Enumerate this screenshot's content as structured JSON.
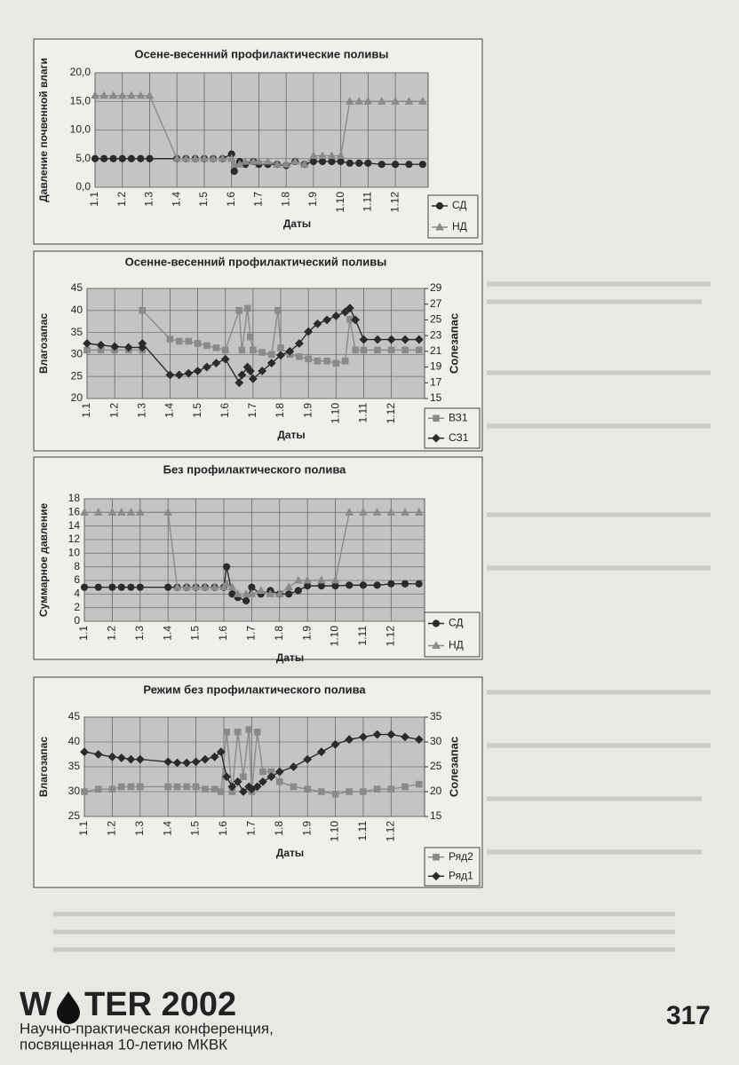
{
  "chart_data": [
    {
      "type": "line",
      "title": "Осене-весенний профилактические поливы",
      "ylabel": "Давление почвенной влаги",
      "xlabel": "Даты",
      "xlim": [
        0,
        12.2
      ],
      "xticks": [
        {
          "value": 0,
          "label": "1.1"
        },
        {
          "value": 1,
          "label": "1.2"
        },
        {
          "value": 2,
          "label": "1.3"
        },
        {
          "value": 3,
          "label": "1.4"
        },
        {
          "value": 4,
          "label": "1.5"
        },
        {
          "value": 5,
          "label": "1.6"
        },
        {
          "value": 6,
          "label": "1.7"
        },
        {
          "value": 7,
          "label": "1.8"
        },
        {
          "value": 8,
          "label": "1.9"
        },
        {
          "value": 9,
          "label": "1.10"
        },
        {
          "value": 10,
          "label": "1.11"
        },
        {
          "value": 11,
          "label": "1.12"
        }
      ],
      "ylim": [
        0,
        20
      ],
      "yticks": [
        {
          "value": 0,
          "label": "0,0"
        },
        {
          "value": 5,
          "label": "5,0"
        },
        {
          "value": 10,
          "label": "10,0"
        },
        {
          "value": 15,
          "label": "15,0"
        },
        {
          "value": 20,
          "label": "20,0"
        }
      ],
      "grid": true,
      "legend": "bottom-right",
      "series": [
        {
          "name": "СД",
          "color": "#2b2b2b",
          "marker": "circle",
          "x": [
            0,
            0.33,
            0.67,
            1,
            1.33,
            1.67,
            2,
            3,
            3.33,
            3.67,
            4,
            4.33,
            4.67,
            5,
            5.1,
            5.3,
            5.5,
            5.8,
            6,
            6.33,
            6.67,
            7,
            7.33,
            7.67,
            8,
            8.33,
            8.67,
            9,
            9.33,
            9.67,
            10,
            10.5,
            11,
            11.5,
            12
          ],
          "values": [
            5,
            5,
            5,
            5,
            5,
            5,
            5,
            5,
            5,
            5,
            5,
            5,
            5,
            5.8,
            2.8,
            4.5,
            4,
            4.5,
            4,
            4,
            4,
            3.8,
            4.5,
            4,
            4.5,
            4.5,
            4.5,
            4.5,
            4.2,
            4.2,
            4.2,
            4,
            4,
            4,
            4
          ]
        },
        {
          "name": "НД",
          "color": "#8a8a8a",
          "marker": "triangle",
          "x": [
            0,
            0.33,
            0.67,
            1,
            1.33,
            1.67,
            2,
            3,
            3.33,
            3.67,
            4,
            4.33,
            4.67,
            5,
            5.1,
            5.3,
            5.5,
            5.8,
            6,
            6.33,
            6.67,
            7,
            7.33,
            7.67,
            8,
            8.33,
            8.67,
            9,
            9.33,
            9.67,
            10,
            10.5,
            11,
            11.5,
            12
          ],
          "values": [
            16,
            16,
            16,
            16,
            16,
            16,
            16,
            5,
            5,
            5,
            5,
            5,
            5,
            5,
            4,
            4,
            4.5,
            4.5,
            4.5,
            4.5,
            4,
            4,
            4.5,
            4,
            5.5,
            5.5,
            5.5,
            5.5,
            15,
            15,
            15,
            15,
            15,
            15,
            15
          ]
        }
      ]
    },
    {
      "type": "line",
      "title": "Осенне-весенний профилактический поливы",
      "ylabel": "Влагозапас",
      "y2label": "Солезапас",
      "xlabel": "Даты",
      "xlim": [
        0,
        12.2
      ],
      "xticks": [
        {
          "value": 0,
          "label": "1.1"
        },
        {
          "value": 1,
          "label": "1.2"
        },
        {
          "value": 2,
          "label": "1.3"
        },
        {
          "value": 3,
          "label": "1.4"
        },
        {
          "value": 4,
          "label": "1.5"
        },
        {
          "value": 5,
          "label": "1.6"
        },
        {
          "value": 6,
          "label": "1.7"
        },
        {
          "value": 7,
          "label": "1.8"
        },
        {
          "value": 8,
          "label": "1.9"
        },
        {
          "value": 9,
          "label": "1.10"
        },
        {
          "value": 10,
          "label": "1.11"
        },
        {
          "value": 11,
          "label": "1.12"
        }
      ],
      "ylim": [
        20,
        45
      ],
      "yticks": [
        20,
        25,
        30,
        35,
        40,
        45
      ],
      "y2lim": [
        15,
        29
      ],
      "y2ticks": [
        15,
        17,
        19,
        21,
        23,
        25,
        27,
        29
      ],
      "grid": true,
      "legend": "bottom-right",
      "series": [
        {
          "name": "ВЗ1",
          "color": "#8a8a8a",
          "marker": "square",
          "x": [
            0,
            0.5,
            1,
            1.5,
            2,
            2,
            3,
            3.33,
            3.67,
            4,
            4.33,
            4.67,
            5,
            5.5,
            5.6,
            5.8,
            5.9,
            6,
            6.33,
            6.67,
            6.9,
            7,
            7.33,
            7.67,
            8,
            8.33,
            8.67,
            9,
            9.33,
            9.5,
            9.7,
            10,
            10.5,
            11,
            11.5,
            12
          ],
          "values": [
            31,
            31,
            31,
            31,
            31,
            40,
            33.5,
            33,
            33,
            32.5,
            32,
            31.5,
            31,
            40,
            31,
            40.5,
            34,
            31,
            30.5,
            30,
            40,
            31.5,
            30,
            29.5,
            29,
            28.5,
            28.5,
            28,
            28.5,
            38,
            31,
            31,
            31,
            31,
            31,
            31
          ]
        },
        {
          "name": "СЗ1",
          "color": "#2b2b2b",
          "marker": "diamond",
          "axis": "y2",
          "x": [
            0,
            0.5,
            1,
            1.5,
            2,
            2,
            3,
            3.33,
            3.67,
            4,
            4.33,
            4.67,
            5,
            5.5,
            5.6,
            5.8,
            5.9,
            6,
            6.33,
            6.67,
            7,
            7.33,
            7.67,
            8,
            8.33,
            8.67,
            9,
            9.33,
            9.5,
            9.7,
            10,
            10.5,
            11,
            11.5,
            12
          ],
          "values": [
            22,
            21.8,
            21.6,
            21.5,
            21.5,
            22,
            18,
            18,
            18.2,
            18.5,
            19,
            19.5,
            20,
            17,
            18,
            19,
            18.5,
            17.5,
            18.5,
            19.5,
            20.5,
            21,
            22,
            23.5,
            24.5,
            25,
            25.5,
            26,
            26.5,
            25,
            22.5,
            22.5,
            22.5,
            22.5,
            22.5
          ]
        }
      ]
    },
    {
      "type": "line",
      "title": "Без профилактического полива",
      "ylabel": "Суммарное давление",
      "xlabel": "Даты",
      "xlim": [
        0,
        12.2
      ],
      "xticks": [
        {
          "value": 0,
          "label": "1.1"
        },
        {
          "value": 1,
          "label": "1.2"
        },
        {
          "value": 2,
          "label": "1.3"
        },
        {
          "value": 3,
          "label": "1.4"
        },
        {
          "value": 4,
          "label": "1.5"
        },
        {
          "value": 5,
          "label": "1.6"
        },
        {
          "value": 6,
          "label": "1.7"
        },
        {
          "value": 7,
          "label": "1.8"
        },
        {
          "value": 8,
          "label": "1.9"
        },
        {
          "value": 9,
          "label": "1.10"
        },
        {
          "value": 10,
          "label": "1.11"
        },
        {
          "value": 11,
          "label": "1.12"
        }
      ],
      "ylim": [
        0,
        18
      ],
      "yticks": [
        0,
        2,
        4,
        6,
        8,
        10,
        12,
        14,
        16,
        18
      ],
      "grid": true,
      "legend": "bottom-right",
      "series": [
        {
          "name": "СД",
          "color": "#2b2b2b",
          "marker": "circle",
          "x": [
            0,
            0.5,
            1,
            1.33,
            1.67,
            2,
            3,
            3.33,
            3.67,
            4,
            4.33,
            4.67,
            5,
            5.1,
            5.3,
            5.5,
            5.8,
            6,
            6.33,
            6.67,
            7,
            7.33,
            7.67,
            8,
            8.5,
            9,
            9.5,
            10,
            10.5,
            11,
            11.5,
            12
          ],
          "values": [
            5,
            5,
            5,
            5,
            5,
            5,
            5,
            5,
            5,
            5,
            5,
            5,
            5,
            8,
            4,
            3.5,
            3,
            5,
            4,
            4.5,
            4,
            4,
            4.5,
            5.2,
            5.2,
            5.2,
            5.3,
            5.3,
            5.3,
            5.5,
            5.5,
            5.5
          ]
        },
        {
          "name": "НД",
          "color": "#8a8a8a",
          "marker": "triangle",
          "x": [
            0,
            0.5,
            1,
            1.33,
            1.67,
            2,
            3,
            3.33,
            3.67,
            4,
            4.33,
            4.67,
            5,
            5.1,
            5.3,
            5.5,
            5.8,
            6,
            6.33,
            6.67,
            7,
            7.33,
            7.67,
            8,
            8.5,
            9,
            9.5,
            10,
            10.5,
            11,
            11.5,
            12
          ],
          "values": [
            16,
            16,
            16,
            16,
            16,
            16,
            16,
            5,
            5,
            5,
            5,
            5,
            5,
            5.5,
            5,
            4,
            4,
            4,
            4.5,
            4,
            4,
            5,
            6,
            6,
            6,
            6,
            16,
            16,
            16,
            16,
            16,
            16
          ]
        }
      ]
    },
    {
      "type": "line",
      "title": "Режим без профилактического полива",
      "ylabel": "Влагозапас",
      "y2label": "Солезапас",
      "xlabel": "Даты",
      "xlim": [
        0,
        12.2
      ],
      "xticks": [
        {
          "value": 0,
          "label": "1.1"
        },
        {
          "value": 1,
          "label": "1.2"
        },
        {
          "value": 2,
          "label": "1.3"
        },
        {
          "value": 3,
          "label": "1.4"
        },
        {
          "value": 4,
          "label": "1.5"
        },
        {
          "value": 5,
          "label": "1.6"
        },
        {
          "value": 6,
          "label": "1.7"
        },
        {
          "value": 7,
          "label": "1.8"
        },
        {
          "value": 8,
          "label": "1.9"
        },
        {
          "value": 9,
          "label": "1.10"
        },
        {
          "value": 10,
          "label": "1.11"
        },
        {
          "value": 11,
          "label": "1.12"
        }
      ],
      "ylim": [
        25,
        45
      ],
      "yticks": [
        25,
        30,
        35,
        40,
        45
      ],
      "y2lim": [
        15,
        35
      ],
      "y2ticks": [
        15,
        20,
        25,
        30,
        35
      ],
      "grid": true,
      "legend": "bottom-right",
      "series": [
        {
          "name": "Ряд2",
          "color": "#8a8a8a",
          "marker": "square",
          "x": [
            0,
            0.5,
            1,
            1.33,
            1.67,
            2,
            3,
            3.33,
            3.67,
            4,
            4.33,
            4.67,
            4.9,
            5.1,
            5.3,
            5.5,
            5.7,
            5.9,
            6,
            6.2,
            6.4,
            6.7,
            7,
            7.5,
            8,
            8.5,
            9,
            9.5,
            10,
            10.5,
            11,
            11.5,
            12
          ],
          "values": [
            30,
            30.5,
            30.5,
            31,
            31,
            31,
            31,
            31,
            31,
            31,
            30.5,
            30.5,
            30,
            42,
            30,
            42,
            33,
            42.5,
            30,
            42,
            34,
            34,
            32,
            31,
            30.5,
            30,
            29.5,
            30,
            30,
            30.5,
            30.5,
            31,
            31.5
          ]
        },
        {
          "name": "Ряд1",
          "color": "#2b2b2b",
          "marker": "diamond",
          "axis": "y2",
          "x": [
            0,
            0.5,
            1,
            1.33,
            1.67,
            2,
            3,
            3.33,
            3.67,
            4,
            4.33,
            4.67,
            4.9,
            5.1,
            5.3,
            5.5,
            5.7,
            5.9,
            6,
            6.2,
            6.4,
            6.7,
            7,
            7.5,
            8,
            8.5,
            9,
            9.5,
            10,
            10.5,
            11,
            11.5,
            12
          ],
          "values": [
            28,
            27.5,
            27,
            26.8,
            26.5,
            26.5,
            26,
            25.8,
            25.8,
            26,
            26.5,
            27,
            28,
            23,
            21,
            22,
            20,
            21,
            20.5,
            21,
            22,
            23,
            24,
            25,
            26.5,
            28,
            29.5,
            30.5,
            31,
            31.5,
            31.5,
            31,
            30.5
          ]
        }
      ]
    }
  ],
  "footer": {
    "logo_left": "W",
    "logo_right": "TER 2002",
    "line1": "Научно-практическая конференция,",
    "line2": "посвященная 10-летию МКВК",
    "page_number": "317"
  }
}
